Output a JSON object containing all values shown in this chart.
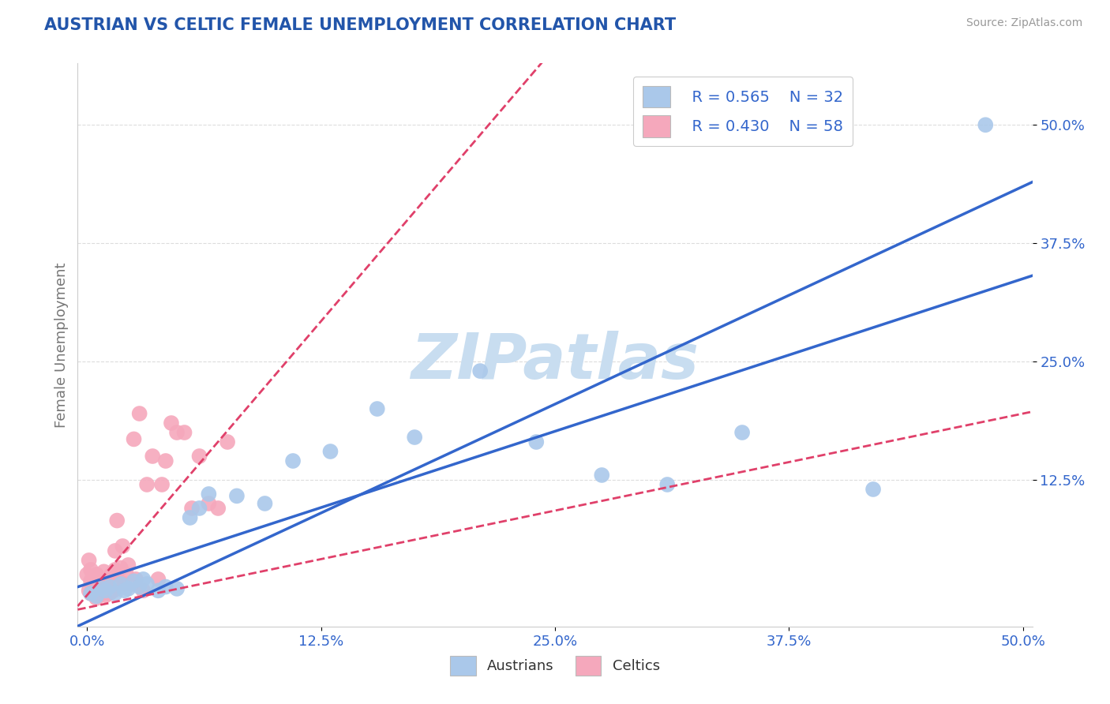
{
  "title": "AUSTRIAN VS CELTIC FEMALE UNEMPLOYMENT CORRELATION CHART",
  "source": "Source: ZipAtlas.com",
  "ylabel": "Female Unemployment",
  "xlim": [
    -0.005,
    0.505
  ],
  "ylim": [
    -0.03,
    0.565
  ],
  "xticks": [
    0.0,
    0.125,
    0.25,
    0.375,
    0.5
  ],
  "xtick_labels": [
    "0.0%",
    "12.5%",
    "25.0%",
    "37.5%",
    "50.0%"
  ],
  "ytick_labels": [
    "12.5%",
    "25.0%",
    "37.5%",
    "50.0%"
  ],
  "ytick_vals": [
    0.125,
    0.25,
    0.375,
    0.5
  ],
  "austrians_color": "#aac8ea",
  "celtics_color": "#f5a8bc",
  "austrians_line_color": "#3366cc",
  "celtics_line_color": "#e0406a",
  "celtics_line_dashed": true,
  "legend_R_austrians": "R = 0.565",
  "legend_N_austrians": "N = 32",
  "legend_R_celtics": "R = 0.430",
  "legend_N_celtics": "N = 58",
  "watermark": "ZIPatlas",
  "watermark_color": "#c8ddf0",
  "background_color": "#ffffff",
  "title_color": "#2255aa",
  "axis_color": "#3366cc",
  "grid_color": "#dddddd",
  "austrians_x": [
    0.002,
    0.005,
    0.008,
    0.01,
    0.012,
    0.015,
    0.018,
    0.02,
    0.022,
    0.025,
    0.028,
    0.03,
    0.032,
    0.038,
    0.042,
    0.048,
    0.055,
    0.06,
    0.065,
    0.08,
    0.095,
    0.11,
    0.13,
    0.155,
    0.175,
    0.21,
    0.24,
    0.275,
    0.31,
    0.35,
    0.42,
    0.48
  ],
  "austrians_y": [
    0.005,
    0.002,
    0.01,
    0.008,
    0.012,
    0.005,
    0.015,
    0.008,
    0.01,
    0.018,
    0.012,
    0.02,
    0.015,
    0.008,
    0.012,
    0.01,
    0.085,
    0.095,
    0.11,
    0.108,
    0.1,
    0.145,
    0.155,
    0.2,
    0.17,
    0.24,
    0.165,
    0.13,
    0.12,
    0.175,
    0.115,
    0.5
  ],
  "celtics_x": [
    0.0,
    0.001,
    0.001,
    0.002,
    0.002,
    0.002,
    0.003,
    0.003,
    0.004,
    0.004,
    0.005,
    0.005,
    0.005,
    0.006,
    0.006,
    0.007,
    0.007,
    0.008,
    0.008,
    0.009,
    0.009,
    0.01,
    0.01,
    0.011,
    0.011,
    0.012,
    0.012,
    0.013,
    0.013,
    0.014,
    0.015,
    0.015,
    0.016,
    0.016,
    0.017,
    0.018,
    0.019,
    0.02,
    0.021,
    0.022,
    0.024,
    0.025,
    0.026,
    0.028,
    0.03,
    0.032,
    0.035,
    0.038,
    0.04,
    0.042,
    0.045,
    0.048,
    0.052,
    0.056,
    0.06,
    0.065,
    0.07,
    0.075
  ],
  "celtics_y": [
    0.025,
    0.008,
    0.04,
    0.005,
    0.018,
    0.03,
    0.01,
    0.022,
    0.008,
    0.015,
    0.0,
    0.012,
    0.025,
    0.005,
    0.018,
    0.008,
    0.02,
    0.005,
    0.015,
    0.008,
    0.028,
    0.003,
    0.015,
    0.01,
    0.02,
    0.005,
    0.018,
    0.012,
    0.025,
    0.008,
    0.03,
    0.05,
    0.015,
    0.082,
    0.018,
    0.032,
    0.055,
    0.015,
    0.025,
    0.035,
    0.015,
    0.168,
    0.02,
    0.195,
    0.008,
    0.12,
    0.15,
    0.02,
    0.12,
    0.145,
    0.185,
    0.175,
    0.175,
    0.095,
    0.15,
    0.1,
    0.095,
    0.165
  ]
}
